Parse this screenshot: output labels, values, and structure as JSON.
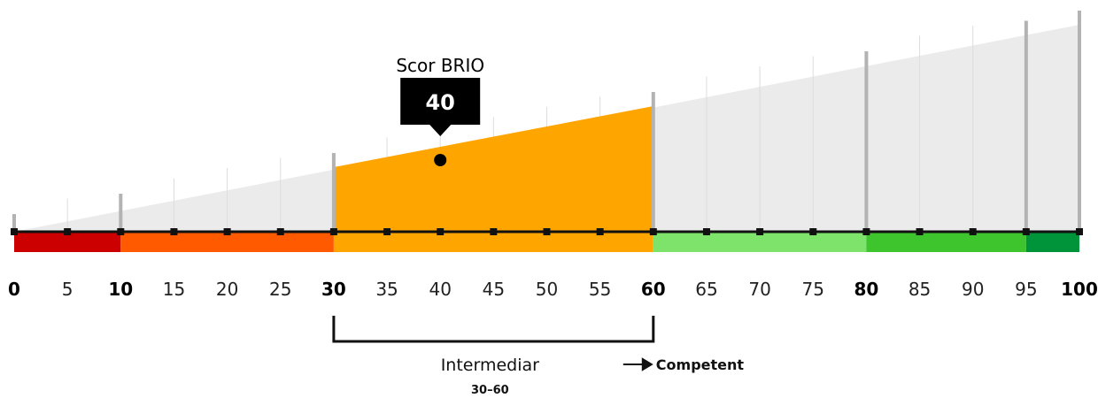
{
  "marker": {
    "title": "Scor BRIO",
    "value": "40",
    "score": 40
  },
  "scale": {
    "min": 0,
    "max": 100,
    "step": 5,
    "major_ticks": [
      0,
      10,
      30,
      60,
      80,
      100
    ],
    "tall_bars": [
      0,
      10,
      30,
      60,
      80,
      95,
      100
    ],
    "tick_labels": [
      "0",
      "5",
      "10",
      "15",
      "20",
      "25",
      "30",
      "35",
      "40",
      "45",
      "50",
      "55",
      "60",
      "65",
      "70",
      "75",
      "80",
      "85",
      "90",
      "95",
      "100"
    ]
  },
  "segments": [
    {
      "from": 0,
      "to": 10,
      "color": "#cc0000"
    },
    {
      "from": 10,
      "to": 30,
      "color": "#ff5a00"
    },
    {
      "from": 30,
      "to": 60,
      "color": "#ffa500"
    },
    {
      "from": 60,
      "to": 80,
      "color": "#7de36a"
    },
    {
      "from": 80,
      "to": 95,
      "color": "#3ec52e"
    },
    {
      "from": 95,
      "to": 100,
      "color": "#00943a"
    }
  ],
  "highlight": {
    "from": 30,
    "to": 60,
    "color": "#ffa500",
    "label": "Intermediar",
    "range_text": "30–60"
  },
  "next_level": {
    "label": "Competent"
  },
  "colors": {
    "wedge": "#ebebeb",
    "baseline": "#111111",
    "gridline": "#dddddd",
    "tall_bar": "#b3b3b3",
    "marker_box": "#000000"
  }
}
